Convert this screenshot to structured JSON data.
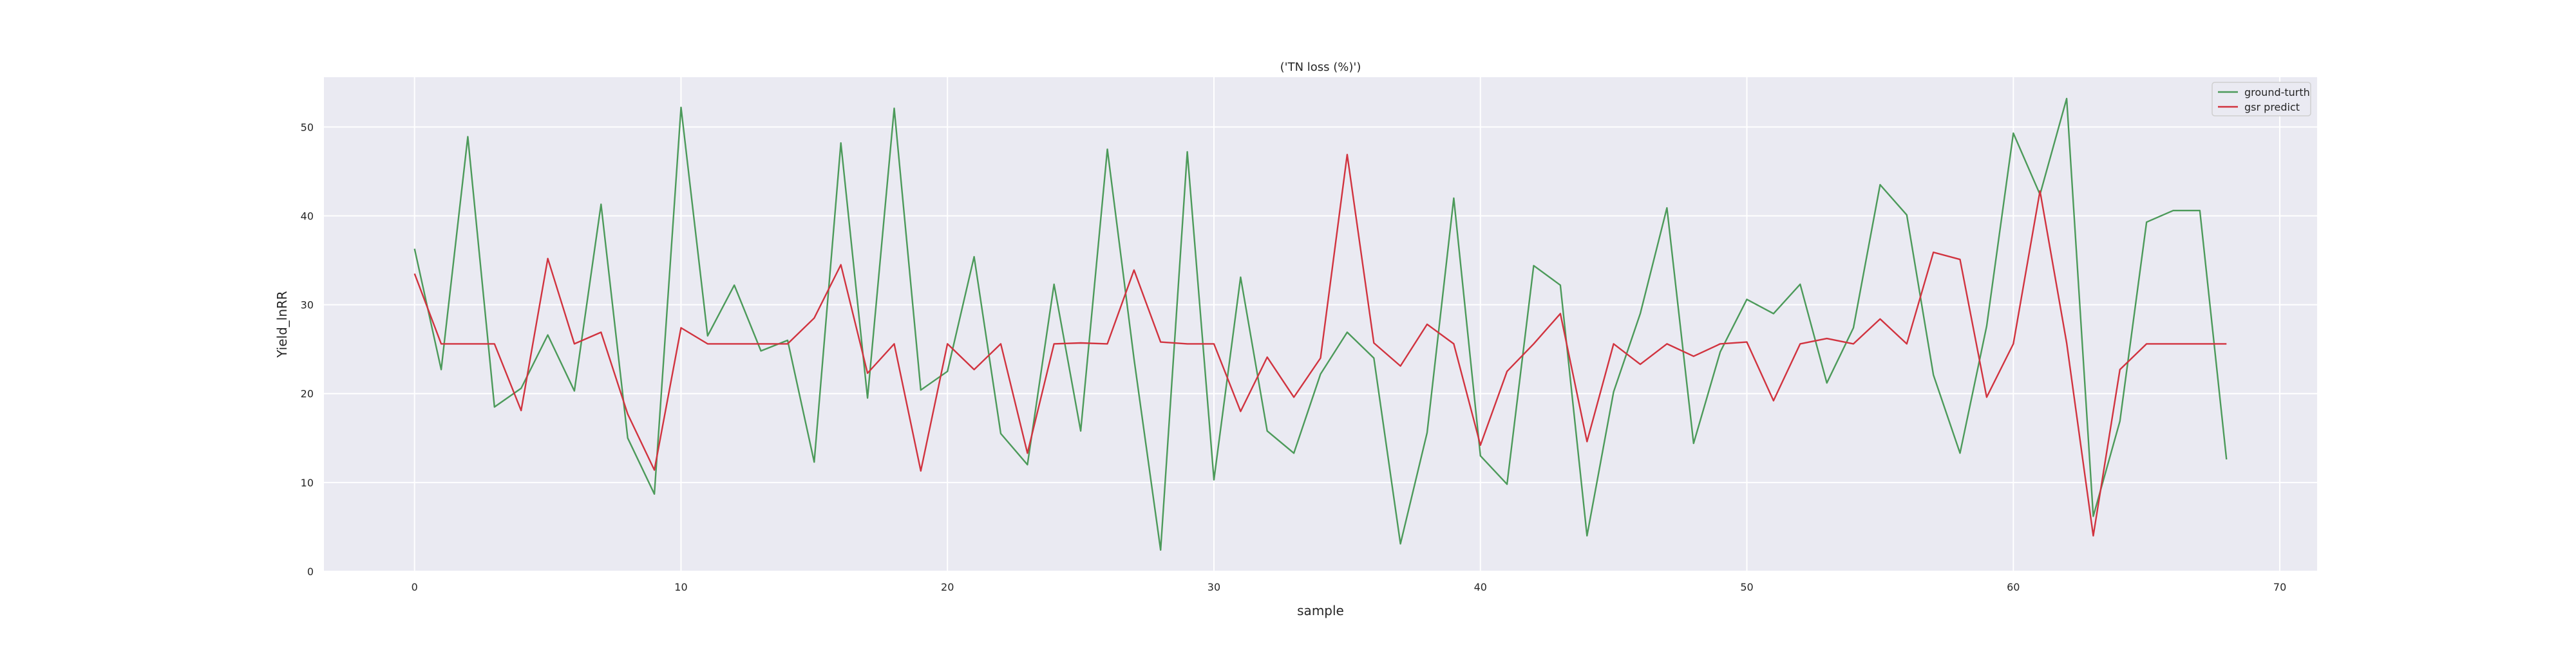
{
  "chart_data": {
    "type": "line",
    "title": "('TN loss (%)')",
    "xlabel": "sample",
    "ylabel": "Yield_lnRR",
    "xlim": [
      -3.4,
      71.4
    ],
    "ylim": [
      0,
      55.6
    ],
    "xticks": [
      0,
      10,
      20,
      30,
      40,
      50,
      60,
      70
    ],
    "yticks": [
      0,
      10,
      20,
      30,
      40,
      50
    ],
    "grid": true,
    "legend_position": "top-right",
    "style": {
      "background": "#eaeaf2",
      "grid_color": "#ffffff"
    },
    "x": [
      0,
      1,
      2,
      3,
      4,
      5,
      6,
      7,
      8,
      9,
      10,
      11,
      12,
      13,
      14,
      15,
      16,
      17,
      18,
      19,
      20,
      21,
      22,
      23,
      24,
      25,
      26,
      27,
      28,
      29,
      30,
      31,
      32,
      33,
      34,
      35,
      36,
      37,
      38,
      39,
      40,
      41,
      42,
      43,
      44,
      45,
      46,
      47,
      48,
      49,
      50,
      51,
      52,
      53,
      54,
      55,
      56,
      57,
      58,
      59,
      60,
      61,
      62,
      63,
      64,
      65,
      66,
      67,
      68
    ],
    "series": [
      {
        "name": "ground-turth",
        "color": "#4c9a5a",
        "values": [
          36.3,
          22.7,
          48.9,
          18.5,
          20.6,
          26.6,
          20.3,
          41.3,
          15.0,
          8.7,
          52.2,
          26.5,
          32.2,
          24.8,
          26.0,
          12.3,
          48.2,
          19.5,
          52.1,
          20.4,
          22.5,
          35.4,
          15.5,
          12.0,
          32.3,
          15.8,
          47.5,
          23.9,
          2.4,
          47.2,
          10.3,
          33.1,
          15.8,
          13.3,
          22.2,
          26.9,
          24.0,
          3.1,
          15.6,
          42.0,
          13.0,
          9.8,
          34.4,
          32.2,
          4.0,
          20.2,
          29.0,
          40.9,
          14.4,
          24.7,
          30.6,
          29.0,
          32.3,
          21.2,
          27.4,
          43.5,
          40.1,
          22.1,
          13.3,
          27.6,
          49.3,
          42.4,
          53.2,
          6.2,
          16.9,
          39.3,
          40.6,
          40.6,
          12.6
        ]
      },
      {
        "name": "gsr predict",
        "color": "#d1333f",
        "values": [
          33.5,
          25.6,
          25.6,
          25.6,
          18.1,
          35.2,
          25.6,
          26.9,
          17.7,
          11.4,
          27.4,
          25.6,
          25.6,
          25.6,
          25.6,
          28.5,
          34.5,
          22.3,
          25.6,
          11.3,
          25.6,
          22.7,
          25.6,
          13.3,
          25.6,
          25.7,
          25.6,
          33.9,
          25.8,
          25.6,
          25.6,
          18.0,
          24.1,
          19.6,
          24.0,
          46.9,
          25.7,
          23.1,
          27.8,
          25.6,
          14.2,
          22.5,
          25.6,
          29.0,
          14.6,
          25.6,
          23.3,
          25.6,
          24.2,
          25.6,
          25.8,
          19.2,
          25.6,
          26.2,
          25.6,
          28.4,
          25.6,
          35.9,
          35.1,
          19.6,
          25.6,
          42.8,
          25.7,
          4.0,
          22.7,
          25.6,
          25.6,
          25.6,
          25.6
        ]
      }
    ]
  }
}
